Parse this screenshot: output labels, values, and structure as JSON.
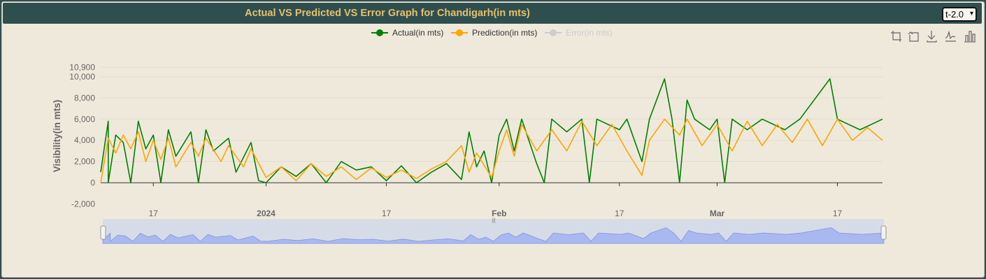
{
  "header": {
    "title": "Actual VS Predicted VS Error Graph for Chandigarh(in mts)",
    "select_value": "t-2.0"
  },
  "toolbar": {
    "icons": [
      "crop-icon",
      "undo-zoom-icon",
      "download-icon",
      "line-chart-icon",
      "bar-chart-icon"
    ]
  },
  "chart_data": {
    "type": "line",
    "ylabel": "Visibility(in mts)",
    "ylim": [
      -2000,
      10900
    ],
    "yticks": [
      "10,900",
      "10,000",
      "8,000",
      "6,000",
      "4,000",
      "2,000",
      "0",
      "-2,000"
    ],
    "ytick_values": [
      10900,
      10000,
      8000,
      6000,
      4000,
      2000,
      0,
      -2000
    ],
    "xlim": [
      "2023-12-10",
      "2024-03-23"
    ],
    "xticks": [
      {
        "label": "17",
        "date": "2023-12-17",
        "bold": false
      },
      {
        "label": "2024",
        "date": "2024-01-01",
        "bold": true
      },
      {
        "label": "17",
        "date": "2024-01-17",
        "bold": false
      },
      {
        "label": "Feb",
        "date": "2024-02-01",
        "bold": true
      },
      {
        "label": "17",
        "date": "2024-02-17",
        "bold": false
      },
      {
        "label": "Mar",
        "date": "2024-03-01",
        "bold": true
      },
      {
        "label": "17",
        "date": "2024-03-17",
        "bold": false
      }
    ],
    "grid": true,
    "legend_position": "top-center",
    "series": [
      {
        "name": "Actual(in mts)",
        "color": "#008000",
        "visible": true,
        "points": [
          [
            "2023-12-10",
            1000
          ],
          [
            "2023-12-11",
            5800
          ],
          [
            "2023-12-11",
            0
          ],
          [
            "2023-12-12",
            4500
          ],
          [
            "2023-12-13",
            3800
          ],
          [
            "2023-12-14",
            0
          ],
          [
            "2023-12-15",
            5800
          ],
          [
            "2023-12-16",
            3200
          ],
          [
            "2023-12-17",
            4500
          ],
          [
            "2023-12-18",
            0
          ],
          [
            "2023-12-19",
            5000
          ],
          [
            "2023-12-20",
            2500
          ],
          [
            "2023-12-22",
            4800
          ],
          [
            "2023-12-23",
            0
          ],
          [
            "2023-12-24",
            5000
          ],
          [
            "2023-12-25",
            3000
          ],
          [
            "2023-12-27",
            4200
          ],
          [
            "2023-12-28",
            1000
          ],
          [
            "2023-12-30",
            3800
          ],
          [
            "2023-12-31",
            200
          ],
          [
            "2024-01-01",
            0
          ],
          [
            "2024-01-03",
            1500
          ],
          [
            "2024-01-05",
            600
          ],
          [
            "2024-01-07",
            1800
          ],
          [
            "2024-01-09",
            0
          ],
          [
            "2024-01-11",
            2000
          ],
          [
            "2024-01-13",
            1200
          ],
          [
            "2024-01-15",
            1500
          ],
          [
            "2024-01-17",
            200
          ],
          [
            "2024-01-19",
            1600
          ],
          [
            "2024-01-21",
            0
          ],
          [
            "2024-01-23",
            1000
          ],
          [
            "2024-01-25",
            1800
          ],
          [
            "2024-01-27",
            300
          ],
          [
            "2024-01-28",
            4800
          ],
          [
            "2024-01-29",
            1500
          ],
          [
            "2024-01-30",
            3000
          ],
          [
            "2024-01-31",
            0
          ],
          [
            "2024-02-01",
            4500
          ],
          [
            "2024-02-02",
            6000
          ],
          [
            "2024-02-03",
            3000
          ],
          [
            "2024-02-04",
            6000
          ],
          [
            "2024-02-06",
            1800
          ],
          [
            "2024-02-07",
            0
          ],
          [
            "2024-02-08",
            6000
          ],
          [
            "2024-02-10",
            4800
          ],
          [
            "2024-02-12",
            6000
          ],
          [
            "2024-02-13",
            0
          ],
          [
            "2024-02-14",
            6000
          ],
          [
            "2024-02-17",
            5000
          ],
          [
            "2024-02-18",
            6000
          ],
          [
            "2024-02-20",
            2000
          ],
          [
            "2024-02-21",
            6000
          ],
          [
            "2024-02-23",
            9800
          ],
          [
            "2024-02-24",
            6000
          ],
          [
            "2024-02-25",
            0
          ],
          [
            "2024-02-26",
            7800
          ],
          [
            "2024-02-27",
            6000
          ],
          [
            "2024-02-29",
            5000
          ],
          [
            "2024-03-01",
            6000
          ],
          [
            "2024-03-02",
            0
          ],
          [
            "2024-03-03",
            6000
          ],
          [
            "2024-03-05",
            5000
          ],
          [
            "2024-03-07",
            6000
          ],
          [
            "2024-03-10",
            5000
          ],
          [
            "2024-03-12",
            6000
          ],
          [
            "2024-03-16",
            9800
          ],
          [
            "2024-03-17",
            6000
          ],
          [
            "2024-03-20",
            5000
          ],
          [
            "2024-03-23",
            6000
          ]
        ]
      },
      {
        "name": "Prediction(in mts)",
        "color": "#ffa500",
        "visible": true,
        "points": [
          [
            "2023-12-10",
            0
          ],
          [
            "2023-12-11",
            4200
          ],
          [
            "2023-12-12",
            2800
          ],
          [
            "2023-12-13",
            4500
          ],
          [
            "2023-12-14",
            3200
          ],
          [
            "2023-12-15",
            4800
          ],
          [
            "2023-12-16",
            2000
          ],
          [
            "2023-12-17",
            4000
          ],
          [
            "2023-12-18",
            2200
          ],
          [
            "2023-12-19",
            4200
          ],
          [
            "2023-12-20",
            1500
          ],
          [
            "2023-12-22",
            3800
          ],
          [
            "2023-12-23",
            2500
          ],
          [
            "2023-12-24",
            4200
          ],
          [
            "2023-12-26",
            2000
          ],
          [
            "2023-12-27",
            3500
          ],
          [
            "2023-12-29",
            1500
          ],
          [
            "2023-12-30",
            3200
          ],
          [
            "2024-01-01",
            500
          ],
          [
            "2024-01-03",
            1500
          ],
          [
            "2024-01-05",
            200
          ],
          [
            "2024-01-07",
            1800
          ],
          [
            "2024-01-09",
            600
          ],
          [
            "2024-01-11",
            1500
          ],
          [
            "2024-01-13",
            300
          ],
          [
            "2024-01-15",
            1400
          ],
          [
            "2024-01-17",
            500
          ],
          [
            "2024-01-19",
            1200
          ],
          [
            "2024-01-21",
            400
          ],
          [
            "2024-01-23",
            1300
          ],
          [
            "2024-01-25",
            2000
          ],
          [
            "2024-01-27",
            3500
          ],
          [
            "2024-01-28",
            1000
          ],
          [
            "2024-01-29",
            2800
          ],
          [
            "2024-01-31",
            500
          ],
          [
            "2024-02-01",
            3000
          ],
          [
            "2024-02-02",
            5000
          ],
          [
            "2024-02-03",
            2500
          ],
          [
            "2024-02-04",
            5500
          ],
          [
            "2024-02-06",
            3000
          ],
          [
            "2024-02-08",
            5000
          ],
          [
            "2024-02-10",
            3000
          ],
          [
            "2024-02-12",
            5800
          ],
          [
            "2024-02-14",
            3500
          ],
          [
            "2024-02-16",
            5500
          ],
          [
            "2024-02-18",
            3000
          ],
          [
            "2024-02-20",
            700
          ],
          [
            "2024-02-21",
            4000
          ],
          [
            "2024-02-23",
            6000
          ],
          [
            "2024-02-25",
            4500
          ],
          [
            "2024-02-26",
            6000
          ],
          [
            "2024-02-28",
            3500
          ],
          [
            "2024-03-01",
            5500
          ],
          [
            "2024-03-03",
            3000
          ],
          [
            "2024-03-05",
            5800
          ],
          [
            "2024-03-07",
            3500
          ],
          [
            "2024-03-09",
            5500
          ],
          [
            "2024-03-11",
            3800
          ],
          [
            "2024-03-13",
            6000
          ],
          [
            "2024-03-15",
            3500
          ],
          [
            "2024-03-17",
            6000
          ],
          [
            "2024-03-19",
            4000
          ],
          [
            "2024-03-21",
            5200
          ],
          [
            "2024-03-23",
            4000
          ]
        ]
      },
      {
        "name": "Error(in mts)",
        "color": "#cccccc",
        "visible": false,
        "points": []
      }
    ]
  }
}
